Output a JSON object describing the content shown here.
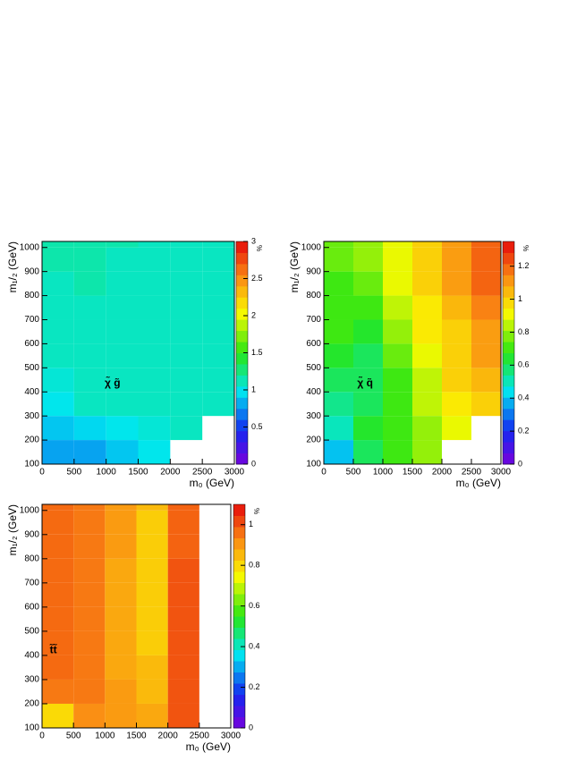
{
  "chart_data": [
    {
      "type": "heatmap",
      "label": "χ̃ g̃",
      "x_label": "m₀ (GeV)",
      "y_label": "m₁/₂ (GeV)",
      "z_label": "%",
      "x_bins": [
        0,
        500,
        1000,
        1500,
        2000,
        2500,
        3000
      ],
      "y_bins": [
        100,
        200,
        300,
        400,
        500,
        600,
        700,
        800,
        900,
        1000,
        1025
      ],
      "z": [
        [
          0.8,
          0.8,
          0.9,
          1.0,
          null,
          null
        ],
        [
          0.9,
          0.95,
          1.0,
          1.05,
          1.1,
          null
        ],
        [
          1.0,
          1.1,
          1.1,
          1.1,
          1.1,
          1.1
        ],
        [
          1.05,
          1.1,
          1.1,
          1.1,
          1.1,
          1.1
        ],
        [
          1.1,
          1.1,
          1.1,
          1.1,
          1.1,
          1.1
        ],
        [
          1.1,
          1.1,
          1.1,
          1.1,
          1.1,
          1.1
        ],
        [
          1.1,
          1.1,
          1.1,
          1.1,
          1.1,
          1.1
        ],
        [
          1.1,
          1.15,
          1.1,
          1.1,
          1.1,
          1.1
        ],
        [
          1.15,
          1.15,
          1.1,
          1.1,
          1.1,
          1.1
        ],
        [
          1.15,
          1.15,
          1.15,
          1.1,
          1.1,
          1.1
        ]
      ],
      "xlim": [
        0,
        3000
      ],
      "ylim": [
        100,
        1025
      ],
      "zlim": [
        0,
        3
      ],
      "xticks": [
        0,
        500,
        1000,
        1500,
        2000,
        2500,
        3000
      ],
      "yticks": [
        100,
        200,
        300,
        400,
        500,
        600,
        700,
        800,
        900,
        1000
      ],
      "zticks": [
        0,
        0.5,
        1,
        1.5,
        2,
        2.5,
        3
      ]
    },
    {
      "type": "heatmap",
      "label": "χ̃ q̃",
      "x_label": "m₀ (GeV)",
      "y_label": "m₁/₂ (GeV)",
      "z_label": "%",
      "x_bins": [
        0,
        500,
        1000,
        1500,
        2000,
        2500,
        3000
      ],
      "y_bins": [
        100,
        200,
        300,
        400,
        500,
        600,
        700,
        800,
        900,
        1000,
        1025
      ],
      "z": [
        [
          0.4,
          0.6,
          0.7,
          0.8,
          null,
          null
        ],
        [
          0.5,
          0.65,
          0.7,
          0.8,
          0.9,
          null
        ],
        [
          0.55,
          0.6,
          0.7,
          0.85,
          0.95,
          1.0
        ],
        [
          0.6,
          0.6,
          0.7,
          0.85,
          1.0,
          1.05
        ],
        [
          0.65,
          0.6,
          0.75,
          0.9,
          1.0,
          1.1
        ],
        [
          0.7,
          0.65,
          0.8,
          0.95,
          1.0,
          1.1
        ],
        [
          0.7,
          0.7,
          0.85,
          0.95,
          1.05,
          1.15
        ],
        [
          0.7,
          0.75,
          0.9,
          1.0,
          1.1,
          1.2
        ],
        [
          0.75,
          0.8,
          0.9,
          1.0,
          1.1,
          1.2
        ],
        [
          0.75,
          0.8,
          0.9,
          1.0,
          1.1,
          1.2
        ]
      ],
      "xlim": [
        0,
        3000
      ],
      "ylim": [
        100,
        1025
      ],
      "zlim": [
        0,
        1.35
      ],
      "xticks": [
        0,
        500,
        1000,
        1500,
        2000,
        2500,
        3000
      ],
      "yticks": [
        100,
        200,
        300,
        400,
        500,
        600,
        700,
        800,
        900,
        1000
      ],
      "zticks": [
        0,
        0.2,
        0.4,
        0.6,
        0.8,
        1,
        1.2
      ]
    },
    {
      "type": "heatmap",
      "label": "t̃t̃",
      "x_label": "m₀ (GeV)",
      "y_label": "m₁/₂ (GeV)",
      "z_label": "%",
      "x_bins": [
        0,
        500,
        1000,
        1500,
        2000,
        2500,
        3000
      ],
      "y_bins": [
        100,
        200,
        300,
        400,
        500,
        600,
        700,
        800,
        900,
        1000,
        1025
      ],
      "z": [
        [
          0.8,
          0.92,
          0.9,
          0.88,
          1.0,
          null
        ],
        [
          0.95,
          0.95,
          0.9,
          0.85,
          1.0,
          null
        ],
        [
          0.97,
          0.95,
          0.88,
          0.85,
          1.0,
          null
        ],
        [
          0.97,
          0.95,
          0.88,
          0.82,
          1.0,
          null
        ],
        [
          0.97,
          0.95,
          0.88,
          0.82,
          1.0,
          null
        ],
        [
          0.97,
          0.95,
          0.88,
          0.82,
          1.0,
          null
        ],
        [
          0.97,
          0.95,
          0.88,
          0.82,
          1.0,
          null
        ],
        [
          0.97,
          0.95,
          0.9,
          0.82,
          0.98,
          null
        ],
        [
          0.97,
          0.95,
          0.9,
          0.82,
          0.98,
          null
        ],
        [
          0.97,
          0.95,
          0.9,
          0.85,
          0.98,
          null
        ]
      ],
      "xlim": [
        0,
        3000
      ],
      "ylim": [
        100,
        1025
      ],
      "zlim": [
        0,
        1.1
      ],
      "xticks": [
        0,
        500,
        1000,
        1500,
        2000,
        2500,
        3000
      ],
      "yticks": [
        100,
        200,
        300,
        400,
        500,
        600,
        700,
        800,
        900,
        1000
      ],
      "zticks": [
        0,
        0.2,
        0.4,
        0.6,
        0.8,
        1
      ]
    }
  ]
}
